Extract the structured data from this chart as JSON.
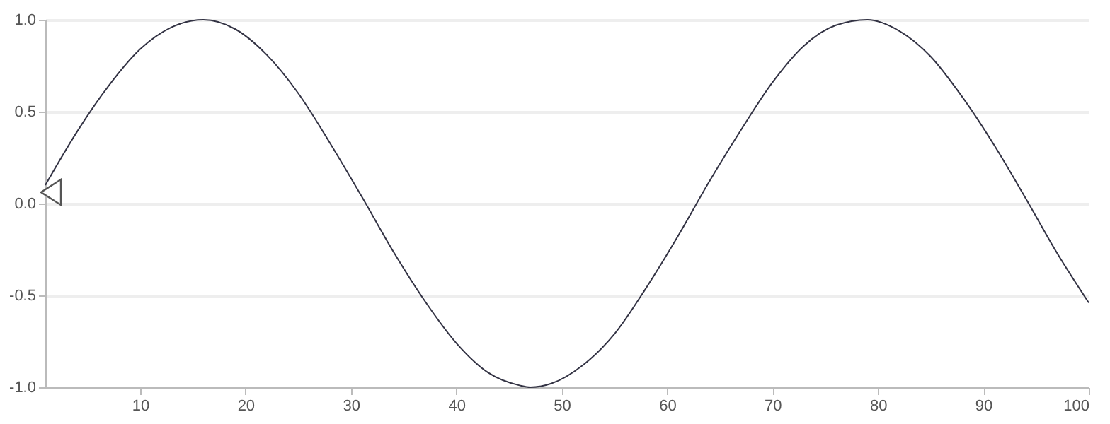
{
  "chart_data": {
    "type": "line",
    "x": [
      1,
      4,
      7,
      10,
      13,
      16,
      19,
      22,
      25,
      28,
      31,
      34,
      37,
      40,
      43,
      46,
      47,
      49,
      52,
      55,
      58,
      61,
      64,
      67,
      70,
      73,
      76,
      79,
      82,
      85,
      88,
      91,
      94,
      97,
      100
    ],
    "series": [
      {
        "color": "#333344",
        "values": [
          0.1,
          0.39,
          0.64,
          0.84,
          0.96,
          1.0,
          0.95,
          0.81,
          0.6,
          0.33,
          0.04,
          -0.26,
          -0.53,
          -0.76,
          -0.92,
          -0.99,
          -1.0,
          -0.98,
          -0.88,
          -0.71,
          -0.46,
          -0.18,
          0.12,
          0.4,
          0.66,
          0.86,
          0.97,
          1.0,
          0.94,
          0.8,
          0.58,
          0.32,
          0.03,
          -0.27,
          -0.54
        ]
      }
    ],
    "xlim": [
      1,
      100
    ],
    "xticks": [
      10,
      20,
      30,
      40,
      50,
      60,
      70,
      80,
      90,
      100
    ],
    "ylim": [
      -1,
      1
    ],
    "yticks": [
      {
        "value": -1,
        "label": "-1.0"
      },
      {
        "value": -0.5,
        "label": "-0.5"
      },
      {
        "value": 0,
        "label": "0.0"
      },
      {
        "value": 0.5,
        "label": "0.5"
      },
      {
        "value": 1,
        "label": "1.0"
      }
    ],
    "grid": "y",
    "marker": "none",
    "line_style": "solid"
  }
}
